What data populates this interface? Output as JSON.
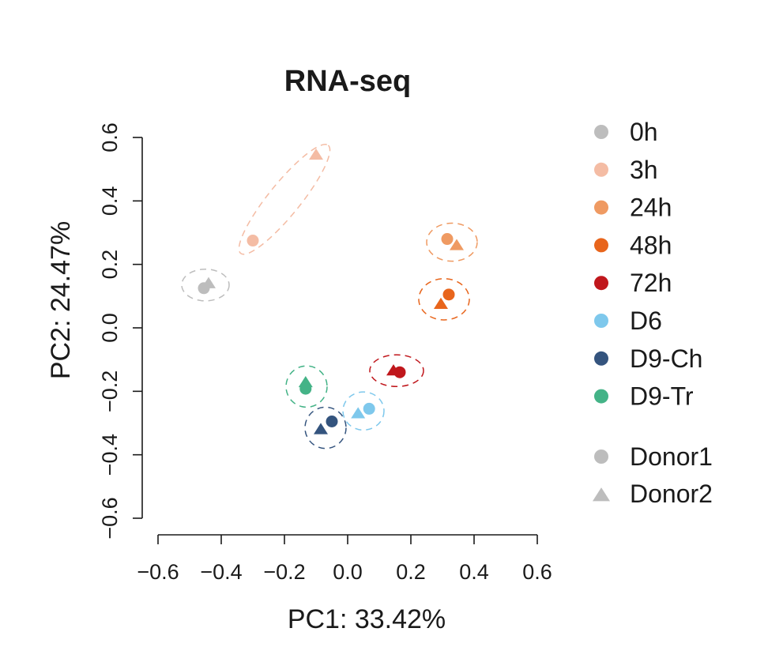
{
  "chart_data": {
    "type": "scatter",
    "title": "RNA-seq",
    "xlabel": "PC1: 33.42%",
    "ylabel": "PC2: 24.47%",
    "xlim": [
      -0.6,
      0.6
    ],
    "ylim": [
      -0.6,
      0.6
    ],
    "xticks": [
      "−0.6",
      "−0.4",
      "−0.2",
      "0.0",
      "0.2",
      "0.4",
      "0.6"
    ],
    "yticks": [
      "−0.6",
      "−0.4",
      "−0.2",
      "0.0",
      "0.2",
      "0.4",
      "0.6"
    ],
    "xtick_values": [
      -0.6,
      -0.4,
      -0.2,
      0.0,
      0.2,
      0.4,
      0.6
    ],
    "ytick_values": [
      -0.6,
      -0.4,
      -0.2,
      0.0,
      0.2,
      0.4,
      0.6
    ],
    "groups": [
      {
        "name": "0h",
        "color": "#bdbdbd",
        "ellipse": {
          "cx": -0.45,
          "cy": 0.135,
          "rx": 0.075,
          "ry": 0.05,
          "angle": 0
        },
        "points": [
          {
            "donor": "Donor1",
            "x": -0.455,
            "y": 0.125
          },
          {
            "donor": "Donor2",
            "x": -0.44,
            "y": 0.14
          }
        ]
      },
      {
        "name": "3h",
        "color": "#f4bca4",
        "ellipse": {
          "cx": -0.2,
          "cy": 0.405,
          "rx": 0.22,
          "ry": 0.05,
          "angle": 51
        },
        "points": [
          {
            "donor": "Donor1",
            "x": -0.3,
            "y": 0.275
          },
          {
            "donor": "Donor2",
            "x": -0.1,
            "y": 0.545
          }
        ]
      },
      {
        "name": "24h",
        "color": "#ef9a62",
        "ellipse": {
          "cx": 0.33,
          "cy": 0.27,
          "rx": 0.08,
          "ry": 0.06,
          "angle": 0
        },
        "points": [
          {
            "donor": "Donor1",
            "x": 0.315,
            "y": 0.28
          },
          {
            "donor": "Donor2",
            "x": 0.345,
            "y": 0.26
          }
        ]
      },
      {
        "name": "48h",
        "color": "#e8651c",
        "ellipse": {
          "cx": 0.305,
          "cy": 0.09,
          "rx": 0.08,
          "ry": 0.065,
          "angle": 0
        },
        "points": [
          {
            "donor": "Donor1",
            "x": 0.32,
            "y": 0.105
          },
          {
            "donor": "Donor2",
            "x": 0.295,
            "y": 0.075
          }
        ]
      },
      {
        "name": "72h",
        "color": "#c0171c",
        "ellipse": {
          "cx": 0.155,
          "cy": -0.135,
          "rx": 0.085,
          "ry": 0.05,
          "angle": 0
        },
        "points": [
          {
            "donor": "Donor1",
            "x": 0.165,
            "y": -0.14
          },
          {
            "donor": "Donor2",
            "x": 0.145,
            "y": -0.135
          }
        ]
      },
      {
        "name": "D6",
        "color": "#7ec8ec",
        "ellipse": {
          "cx": 0.05,
          "cy": -0.262,
          "rx": 0.065,
          "ry": 0.06,
          "angle": 0
        },
        "points": [
          {
            "donor": "Donor1",
            "x": 0.068,
            "y": -0.255
          },
          {
            "donor": "Donor2",
            "x": 0.033,
            "y": -0.27
          }
        ]
      },
      {
        "name": "D9-Ch",
        "color": "#34547e",
        "ellipse": {
          "cx": -0.07,
          "cy": -0.315,
          "rx": 0.065,
          "ry": 0.065,
          "angle": 0
        },
        "points": [
          {
            "donor": "Donor1",
            "x": -0.05,
            "y": -0.295
          },
          {
            "donor": "Donor2",
            "x": -0.085,
            "y": -0.32
          }
        ]
      },
      {
        "name": "D9-Tr",
        "color": "#44b387",
        "ellipse": {
          "cx": -0.13,
          "cy": -0.185,
          "rx": 0.065,
          "ry": 0.065,
          "angle": 0
        },
        "points": [
          {
            "donor": "Donor1",
            "x": -0.133,
            "y": -0.192
          },
          {
            "donor": "Donor2",
            "x": -0.133,
            "y": -0.172
          }
        ]
      }
    ],
    "shape_legend": [
      {
        "name": "Donor1",
        "shape": "circle",
        "color": "#bdbdbd"
      },
      {
        "name": "Donor2",
        "shape": "triangle",
        "color": "#bdbdbd"
      }
    ]
  }
}
